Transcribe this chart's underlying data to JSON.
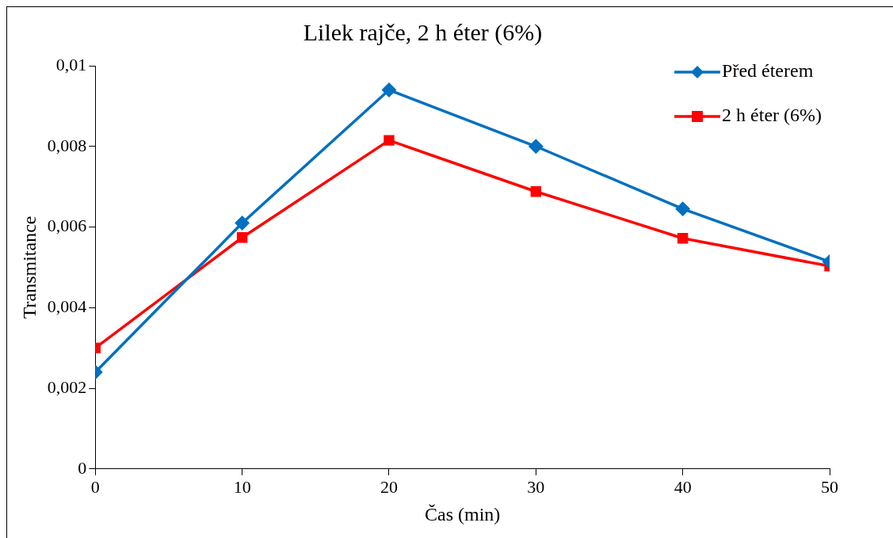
{
  "chart_data": {
    "type": "line",
    "title": "Lilek rajče, 2 h éter (6%)",
    "xlabel": "Čas (min)",
    "ylabel": "Transmitance",
    "x": [
      0,
      10,
      20,
      30,
      40,
      50
    ],
    "series": [
      {
        "name": "Před éterem",
        "color": "#0070c0",
        "marker": "diamond",
        "values": [
          0.0024,
          0.0061,
          0.0094,
          0.008,
          0.00645,
          0.00514
        ]
      },
      {
        "name": "2 h éter (6%)",
        "color": "#ff0000",
        "marker": "square",
        "values": [
          0.003,
          0.00574,
          0.00815,
          0.00688,
          0.00572,
          0.00503
        ]
      }
    ],
    "xlim": [
      0,
      50
    ],
    "xticks": [
      0,
      10,
      20,
      30,
      40,
      50
    ],
    "ylim": [
      0,
      0.01
    ],
    "yticks": [
      0,
      {
        "value": 0.002,
        "label": "0,002"
      },
      {
        "value": 0.004,
        "label": "0,004"
      },
      {
        "value": 0.006,
        "label": "0,006"
      },
      {
        "value": 0.008,
        "label": "0,008"
      },
      {
        "value": 0.01,
        "label": "0,01"
      }
    ],
    "grid": false,
    "legend": "top right",
    "line_style": "solid"
  }
}
